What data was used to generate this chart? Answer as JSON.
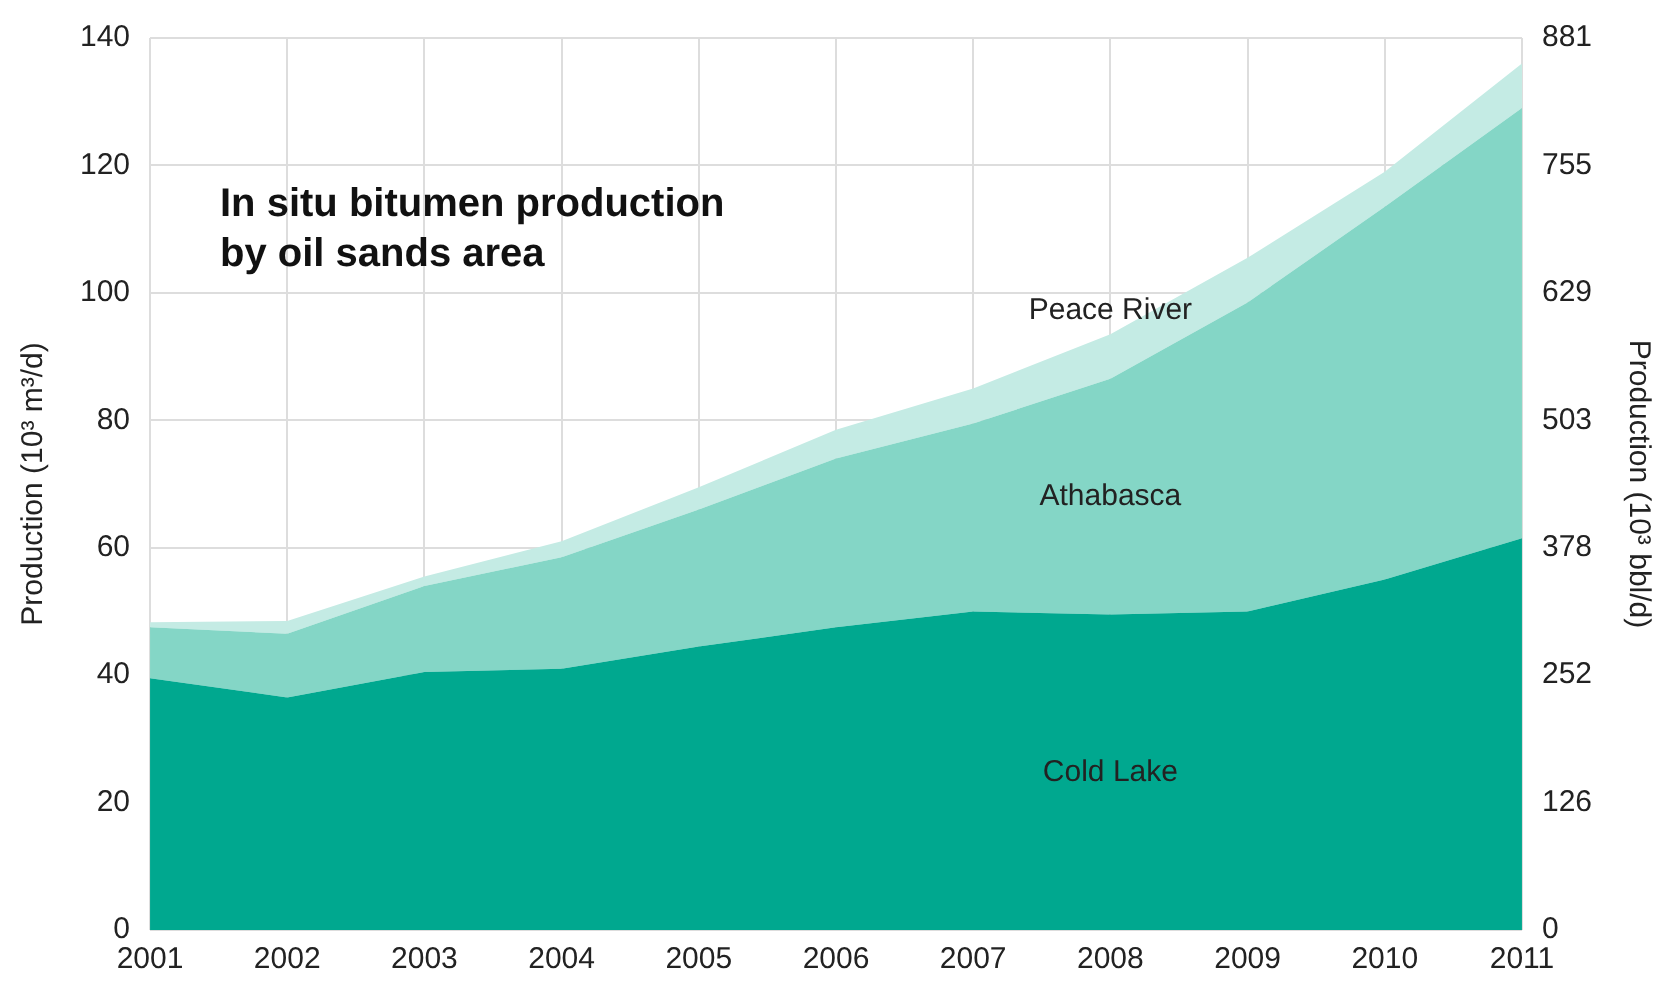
{
  "chart_data": {
    "type": "area",
    "stacked": true,
    "title": "In situ bitumen production\nby oil sands area",
    "ylabel": "Production (10³ m³/d)",
    "y2label": "Production (10³ bbl/d)",
    "categories": [
      "2001",
      "2002",
      "2003",
      "2004",
      "2005",
      "2006",
      "2007",
      "2008",
      "2009",
      "2010",
      "2011"
    ],
    "series": [
      {
        "name": "Cold Lake",
        "color": "#00a88f",
        "values": [
          39.5,
          36.5,
          40.5,
          41,
          44.5,
          47.5,
          50,
          49.5,
          50,
          55,
          61.5
        ]
      },
      {
        "name": "Athabasca",
        "color": "#84d6c6",
        "values": [
          8,
          10,
          13.5,
          17.5,
          21.5,
          26.5,
          29.5,
          37,
          48.5,
          58.5,
          67.5
        ]
      },
      {
        "name": "Peace River",
        "color": "#c4ebe4",
        "values": [
          0.8,
          2,
          1.5,
          2.5,
          3.5,
          4.5,
          5.5,
          7,
          7,
          5.5,
          7
        ]
      }
    ],
    "ylim": [
      0,
      140
    ],
    "yticks": [
      0,
      20,
      40,
      60,
      80,
      100,
      120,
      140
    ],
    "y2lim": [
      0,
      881
    ],
    "y2ticks": [
      0,
      126,
      252,
      378,
      503,
      629,
      755,
      881
    ],
    "grid": true,
    "legend": false
  }
}
